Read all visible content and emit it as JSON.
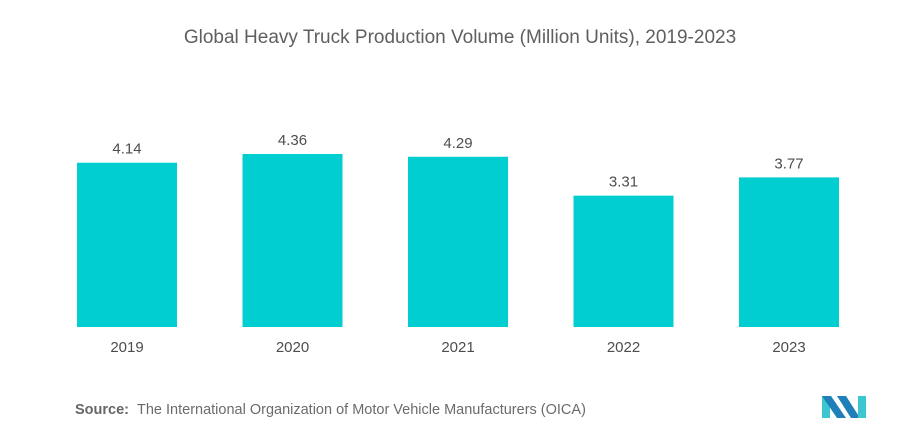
{
  "chart_data": {
    "type": "bar",
    "title": "Global Heavy Truck Production Volume (Million Units), 2019-2023",
    "categories": [
      "2019",
      "2020",
      "2021",
      "2022",
      "2023"
    ],
    "values": [
      4.14,
      4.36,
      4.29,
      3.31,
      3.77
    ],
    "value_labels": [
      "4.14",
      "4.36",
      "4.29",
      "3.31",
      "3.77"
    ],
    "xlabel": "",
    "ylabel": "",
    "ylim": [
      0,
      4.36
    ],
    "grid": false,
    "legend": "none",
    "bar_color": "#00CED1"
  },
  "source": {
    "label": "Source:",
    "text": "The International Organization of Motor Vehicle Manufacturers (OICA)"
  },
  "logo": {
    "icon": "mordor-intelligence-logo",
    "colors": [
      "#1f7fb8",
      "#3cc6cf"
    ]
  }
}
